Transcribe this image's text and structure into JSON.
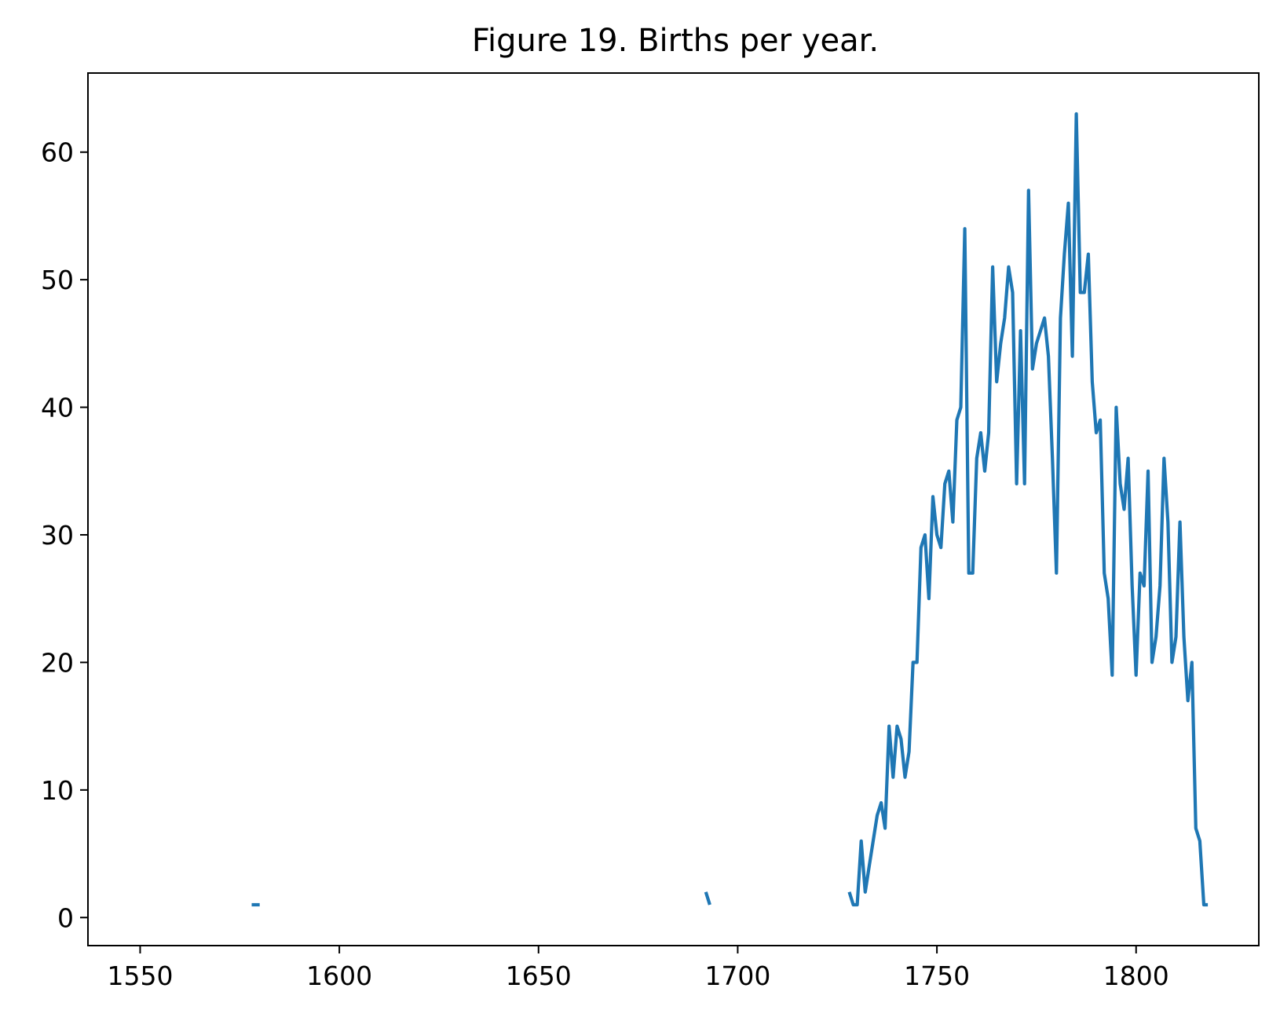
{
  "chart_data": {
    "type": "line",
    "title": "Figure 19. Births per year.",
    "xlabel": "",
    "ylabel": "",
    "xlim": [
      1536.9,
      1830.8
    ],
    "ylim": [
      -2.2,
      66.2
    ],
    "x_ticks": [
      1550,
      1600,
      1650,
      1700,
      1750,
      1800
    ],
    "y_ticks": [
      0,
      10,
      20,
      30,
      40,
      50,
      60
    ],
    "grid": false,
    "legend": "none",
    "series": [
      {
        "color": "#1f77b4",
        "segments": [
          [
            [
              1578,
              1
            ],
            [
              1580,
              1
            ]
          ],
          [
            [
              1692,
              2
            ],
            [
              1693,
              1
            ]
          ],
          [
            [
              1728,
              2
            ],
            [
              1729,
              1
            ],
            [
              1730,
              1
            ],
            [
              1731,
              6
            ],
            [
              1732,
              2
            ],
            [
              1733,
              4
            ],
            [
              1734,
              6
            ],
            [
              1735,
              8
            ],
            [
              1736,
              9
            ],
            [
              1737,
              7
            ],
            [
              1738,
              15
            ],
            [
              1739,
              11
            ],
            [
              1740,
              15
            ],
            [
              1741,
              14
            ],
            [
              1742,
              11
            ],
            [
              1743,
              13
            ],
            [
              1744,
              20
            ],
            [
              1745,
              20
            ],
            [
              1746,
              29
            ],
            [
              1747,
              30
            ],
            [
              1748,
              25
            ],
            [
              1749,
              33
            ],
            [
              1750,
              30
            ],
            [
              1751,
              29
            ],
            [
              1752,
              34
            ],
            [
              1753,
              35
            ],
            [
              1754,
              31
            ],
            [
              1755,
              39
            ],
            [
              1756,
              40
            ],
            [
              1757,
              54
            ],
            [
              1758,
              27
            ],
            [
              1759,
              27
            ],
            [
              1760,
              36
            ],
            [
              1761,
              38
            ],
            [
              1762,
              35
            ],
            [
              1763,
              38
            ],
            [
              1764,
              51
            ],
            [
              1765,
              42
            ],
            [
              1766,
              45
            ],
            [
              1767,
              47
            ],
            [
              1768,
              51
            ],
            [
              1769,
              49
            ],
            [
              1770,
              34
            ],
            [
              1771,
              46
            ],
            [
              1772,
              34
            ],
            [
              1773,
              57
            ],
            [
              1774,
              43
            ],
            [
              1775,
              45
            ],
            [
              1776,
              46
            ],
            [
              1777,
              47
            ],
            [
              1778,
              44
            ],
            [
              1779,
              36
            ],
            [
              1780,
              27
            ],
            [
              1781,
              47
            ],
            [
              1782,
              52
            ],
            [
              1783,
              56
            ],
            [
              1784,
              44
            ],
            [
              1785,
              63
            ],
            [
              1786,
              49
            ],
            [
              1787,
              49
            ],
            [
              1788,
              52
            ],
            [
              1789,
              42
            ],
            [
              1790,
              38
            ],
            [
              1791,
              39
            ],
            [
              1792,
              27
            ],
            [
              1793,
              25
            ],
            [
              1794,
              19
            ],
            [
              1795,
              40
            ],
            [
              1796,
              34
            ],
            [
              1797,
              32
            ],
            [
              1798,
              36
            ],
            [
              1799,
              26
            ],
            [
              1800,
              19
            ],
            [
              1801,
              27
            ],
            [
              1802,
              26
            ],
            [
              1803,
              35
            ],
            [
              1804,
              20
            ],
            [
              1805,
              22
            ],
            [
              1806,
              26
            ],
            [
              1807,
              36
            ],
            [
              1808,
              31
            ],
            [
              1809,
              20
            ],
            [
              1810,
              22
            ],
            [
              1811,
              31
            ],
            [
              1812,
              22
            ],
            [
              1813,
              17
            ],
            [
              1814,
              20
            ],
            [
              1815,
              7
            ],
            [
              1816,
              6
            ],
            [
              1817,
              1
            ],
            [
              1818,
              1
            ]
          ]
        ]
      }
    ]
  }
}
